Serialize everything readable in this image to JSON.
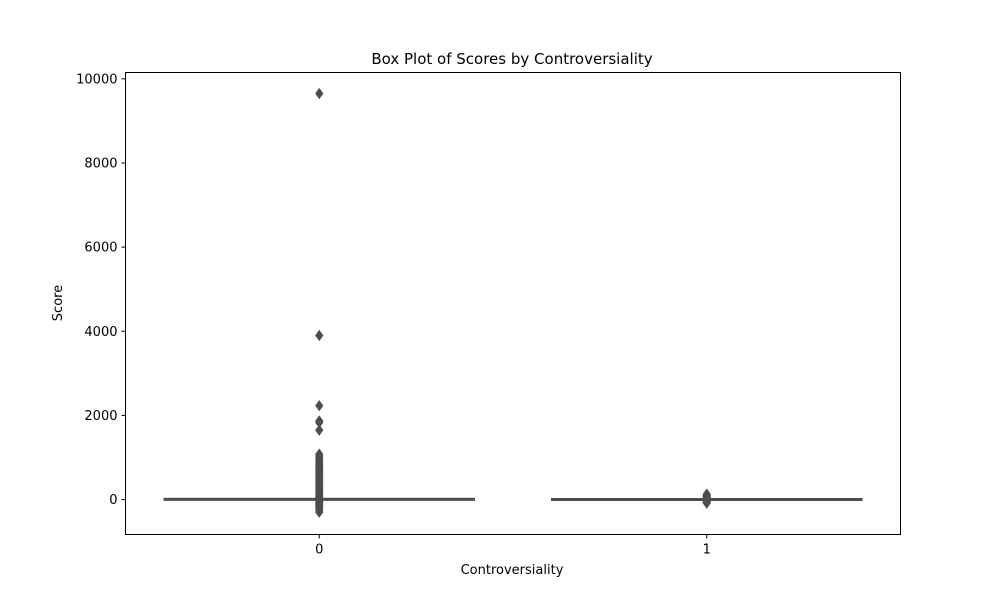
{
  "chart_data": {
    "type": "box",
    "title": "Box Plot of Scores by Controversiality",
    "xlabel": "Controversiality",
    "ylabel": "Score",
    "ylim": [
      -830,
      10150
    ],
    "y_ticks": [
      0,
      2000,
      4000,
      6000,
      8000,
      10000
    ],
    "categories": [
      "0",
      "1"
    ],
    "box_color": "#4d4d4d",
    "grid": false,
    "legend": "none",
    "groups": [
      {
        "category": "0",
        "min": -5,
        "q1": 1,
        "median": 2,
        "q3": 6,
        "max": 13,
        "outliers": [
          9650,
          3900,
          2230,
          1870,
          1830,
          1650,
          1080,
          1040,
          1000,
          960,
          920,
          880,
          850,
          820,
          800,
          780,
          750,
          720,
          690,
          660,
          630,
          600,
          570,
          540,
          510,
          480,
          450,
          420,
          390,
          360,
          330,
          300,
          270,
          240,
          210,
          180,
          150,
          120,
          100,
          80,
          60,
          45,
          30,
          20,
          -10,
          -20,
          -30,
          -45,
          -60,
          -80,
          -100,
          -120,
          -140,
          -160,
          -180,
          -200,
          -230,
          -260,
          -300
        ]
      },
      {
        "category": "1",
        "min": -12,
        "q1": -2,
        "median": 0,
        "q3": 2,
        "max": 8,
        "outliers": [
          130,
          115,
          100,
          85,
          70,
          60,
          50,
          40,
          30,
          20,
          12,
          -15,
          -25,
          -35,
          -45,
          -55,
          -65,
          -75,
          -85
        ]
      }
    ]
  }
}
